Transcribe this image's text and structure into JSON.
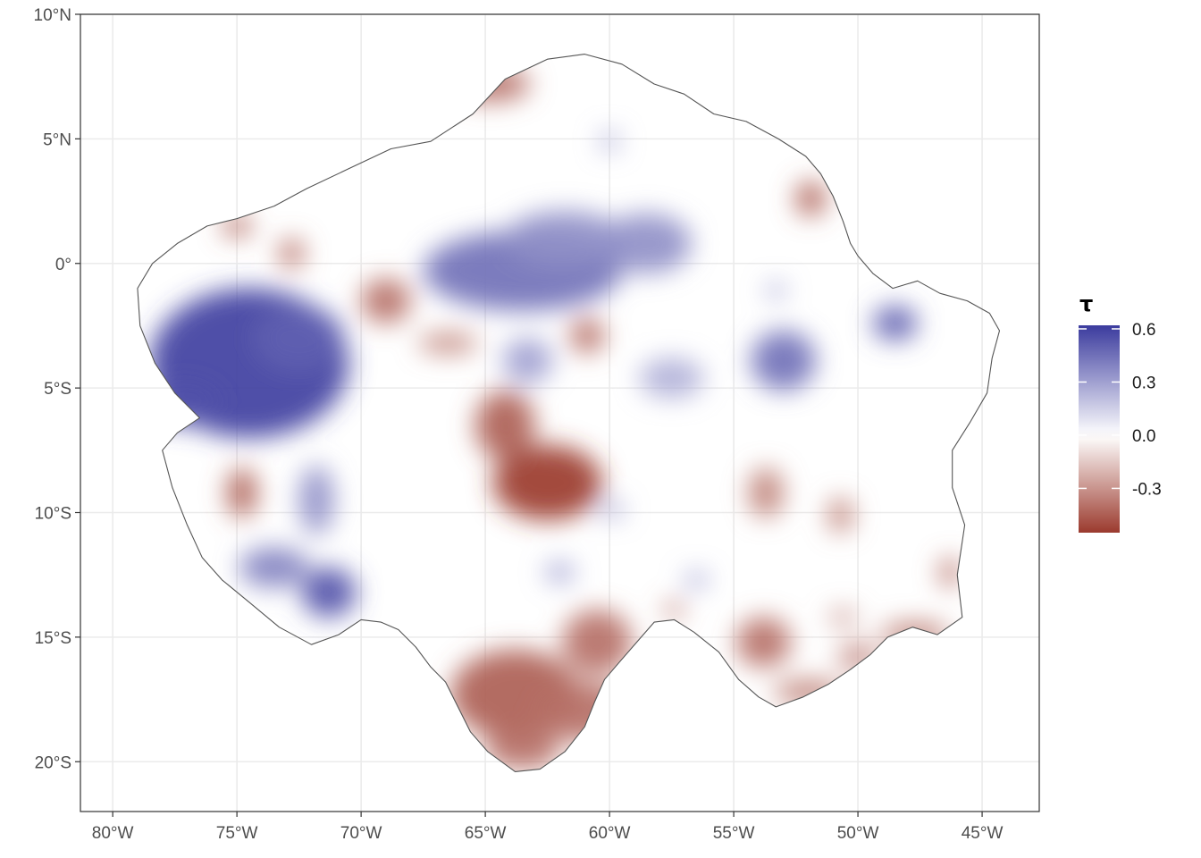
{
  "map": {
    "x_ticks": [
      {
        "lon": -80,
        "label": "80°W"
      },
      {
        "lon": -75,
        "label": "75°W"
      },
      {
        "lon": -70,
        "label": "70°W"
      },
      {
        "lon": -65,
        "label": "65°W"
      },
      {
        "lon": -60,
        "label": "60°W"
      },
      {
        "lon": -55,
        "label": "55°W"
      },
      {
        "lon": -50,
        "label": "50°W"
      },
      {
        "lon": -45,
        "label": "45°W"
      }
    ],
    "y_ticks": [
      {
        "lat": 10,
        "label": "10°N"
      },
      {
        "lat": 5,
        "label": "5°N"
      },
      {
        "lat": 0,
        "label": "0°"
      },
      {
        "lat": -5,
        "label": "5°S"
      },
      {
        "lat": -10,
        "label": "10°S"
      },
      {
        "lat": -15,
        "label": "15°S"
      },
      {
        "lat": -20,
        "label": "20°S"
      }
    ],
    "lon_range": [
      -81.3,
      -42.7
    ],
    "lat_range": [
      -22,
      10
    ],
    "grid": true,
    "boundary_color": "#555555",
    "outline": [
      [
        -76.5,
        -6.2
      ],
      [
        -77.5,
        -5.2
      ],
      [
        -78.3,
        -4.0
      ],
      [
        -78.9,
        -2.5
      ],
      [
        -79.0,
        -1.0
      ],
      [
        -78.4,
        0.0
      ],
      [
        -77.4,
        0.8
      ],
      [
        -76.2,
        1.5
      ],
      [
        -75.0,
        1.8
      ],
      [
        -73.5,
        2.3
      ],
      [
        -72.2,
        3.0
      ],
      [
        -70.5,
        3.8
      ],
      [
        -68.8,
        4.6
      ],
      [
        -67.2,
        4.9
      ],
      [
        -65.5,
        6.0
      ],
      [
        -64.2,
        7.4
      ],
      [
        -62.5,
        8.2
      ],
      [
        -61.0,
        8.4
      ],
      [
        -59.5,
        8.0
      ],
      [
        -58.2,
        7.2
      ],
      [
        -57.0,
        6.8
      ],
      [
        -55.8,
        6.0
      ],
      [
        -54.5,
        5.7
      ],
      [
        -53.2,
        5.0
      ],
      [
        -52.1,
        4.3
      ],
      [
        -51.5,
        3.6
      ],
      [
        -51.0,
        2.7
      ],
      [
        -50.6,
        1.7
      ],
      [
        -50.3,
        0.8
      ],
      [
        -50.0,
        0.3
      ],
      [
        -49.4,
        -0.4
      ],
      [
        -48.6,
        -1.0
      ],
      [
        -47.6,
        -0.7
      ],
      [
        -46.7,
        -1.2
      ],
      [
        -45.6,
        -1.5
      ],
      [
        -44.7,
        -2.0
      ],
      [
        -44.3,
        -2.7
      ],
      [
        -44.6,
        -3.8
      ],
      [
        -44.8,
        -5.2
      ],
      [
        -45.5,
        -6.4
      ],
      [
        -46.2,
        -7.5
      ],
      [
        -46.2,
        -9.0
      ],
      [
        -45.7,
        -10.5
      ],
      [
        -46.0,
        -12.5
      ],
      [
        -45.8,
        -14.2
      ],
      [
        -46.8,
        -14.9
      ],
      [
        -47.8,
        -14.6
      ],
      [
        -48.8,
        -15.0
      ],
      [
        -49.5,
        -15.7
      ],
      [
        -50.3,
        -16.3
      ],
      [
        -51.2,
        -16.9
      ],
      [
        -52.2,
        -17.4
      ],
      [
        -53.3,
        -17.8
      ],
      [
        -54.0,
        -17.4
      ],
      [
        -54.8,
        -16.7
      ],
      [
        -55.6,
        -15.6
      ],
      [
        -56.6,
        -14.8
      ],
      [
        -57.4,
        -14.3
      ],
      [
        -58.2,
        -14.4
      ],
      [
        -58.9,
        -15.2
      ],
      [
        -59.6,
        -16.0
      ],
      [
        -60.2,
        -16.7
      ],
      [
        -60.6,
        -17.6
      ],
      [
        -61.0,
        -18.6
      ],
      [
        -61.8,
        -19.6
      ],
      [
        -62.8,
        -20.3
      ],
      [
        -63.8,
        -20.4
      ],
      [
        -64.9,
        -19.6
      ],
      [
        -65.6,
        -18.8
      ],
      [
        -66.2,
        -17.6
      ],
      [
        -66.6,
        -16.8
      ],
      [
        -67.2,
        -16.2
      ],
      [
        -67.8,
        -15.4
      ],
      [
        -68.5,
        -14.7
      ],
      [
        -69.2,
        -14.4
      ],
      [
        -70.0,
        -14.3
      ],
      [
        -70.9,
        -14.9
      ],
      [
        -72.0,
        -15.3
      ],
      [
        -73.3,
        -14.6
      ],
      [
        -74.5,
        -13.6
      ],
      [
        -75.6,
        -12.7
      ],
      [
        -76.4,
        -11.8
      ],
      [
        -77.0,
        -10.5
      ],
      [
        -77.6,
        -9.0
      ],
      [
        -78.0,
        -7.5
      ],
      [
        -77.4,
        -6.8
      ]
    ]
  },
  "legend": {
    "title": "τ",
    "ticks": [
      {
        "value": 0.6,
        "label": "0.6"
      },
      {
        "value": 0.3,
        "label": "0.3"
      },
      {
        "value": 0.0,
        "label": "0.0"
      },
      {
        "value": -0.3,
        "label": "-0.3"
      }
    ],
    "range": [
      -0.55,
      0.62
    ],
    "colors": {
      "high": "#3b3b9e",
      "mid": "#ffffff",
      "low": "#9b3a2e"
    }
  },
  "chart_data": {
    "type": "heatmap",
    "value_name": "τ",
    "lon_range": [
      -81.3,
      -42.7
    ],
    "lat_range": [
      -22,
      10
    ],
    "scale": {
      "low": -0.55,
      "mid": 0.0,
      "high": 0.62
    },
    "blobs": [
      {
        "lon": -74.5,
        "lat": -4.0,
        "rlon": 4.0,
        "rlat": 3.0,
        "tau": 0.6
      },
      {
        "lon": -72.5,
        "lat": -3.0,
        "rlon": 1.8,
        "rlat": 1.3,
        "tau": 0.5
      },
      {
        "lon": -77.2,
        "lat": -5.6,
        "rlon": 1.6,
        "rlat": 0.9,
        "tau": 0.55
      },
      {
        "lon": -63.5,
        "lat": -0.3,
        "rlon": 4.0,
        "rlat": 1.6,
        "tau": 0.45
      },
      {
        "lon": -61.8,
        "lat": 1.0,
        "rlon": 2.4,
        "rlat": 1.1,
        "tau": 0.35
      },
      {
        "lon": -58.5,
        "lat": 0.8,
        "rlon": 1.8,
        "rlat": 1.2,
        "tau": 0.35
      },
      {
        "lon": -53.0,
        "lat": -3.9,
        "rlon": 1.3,
        "rlat": 1.2,
        "tau": 0.45
      },
      {
        "lon": -48.5,
        "lat": -2.4,
        "rlon": 0.9,
        "rlat": 0.7,
        "tau": 0.5
      },
      {
        "lon": -71.3,
        "lat": -13.2,
        "rlon": 1.1,
        "rlat": 1.0,
        "tau": 0.55
      },
      {
        "lon": -73.5,
        "lat": -12.2,
        "rlon": 1.4,
        "rlat": 0.8,
        "tau": 0.4
      },
      {
        "lon": -71.8,
        "lat": -9.5,
        "rlon": 0.7,
        "rlat": 1.4,
        "tau": 0.35
      },
      {
        "lon": -63.3,
        "lat": -3.9,
        "rlon": 1.0,
        "rlat": 0.9,
        "tau": 0.3
      },
      {
        "lon": -59.9,
        "lat": -9.9,
        "rlon": 0.5,
        "rlat": 0.3,
        "tau": 0.3
      },
      {
        "lon": -62.0,
        "lat": -12.4,
        "rlon": 0.6,
        "rlat": 0.4,
        "tau": 0.3
      },
      {
        "lon": -56.5,
        "lat": -12.7,
        "rlon": 0.5,
        "rlat": 0.3,
        "tau": 0.3
      },
      {
        "lon": -60.0,
        "lat": 4.9,
        "rlon": 0.4,
        "rlat": 0.4,
        "tau": 0.25
      },
      {
        "lon": -53.3,
        "lat": -1.1,
        "rlon": 0.4,
        "rlat": 0.3,
        "tau": 0.3
      },
      {
        "lon": -57.5,
        "lat": -4.6,
        "rlon": 1.3,
        "rlat": 0.8,
        "tau": 0.25
      },
      {
        "lon": -62.5,
        "lat": -8.8,
        "rlon": 2.2,
        "rlat": 1.5,
        "tau": -0.55
      },
      {
        "lon": -64.2,
        "lat": -6.5,
        "rlon": 1.2,
        "rlat": 1.4,
        "tau": -0.45
      },
      {
        "lon": -63.8,
        "lat": -17.3,
        "rlon": 2.6,
        "rlat": 1.8,
        "tau": -0.45
      },
      {
        "lon": -61.0,
        "lat": -18.0,
        "rlon": 2.0,
        "rlat": 1.2,
        "tau": -0.4
      },
      {
        "lon": -63.5,
        "lat": -19.5,
        "rlon": 1.5,
        "rlat": 0.8,
        "tau": -0.4
      },
      {
        "lon": -60.5,
        "lat": -15.2,
        "rlon": 1.4,
        "rlat": 1.3,
        "tau": -0.4
      },
      {
        "lon": -64.8,
        "lat": 7.2,
        "rlon": 1.6,
        "rlat": 0.7,
        "tau": -0.4
      },
      {
        "lon": -69.0,
        "lat": -1.5,
        "rlon": 1.0,
        "rlat": 0.9,
        "tau": -0.4
      },
      {
        "lon": -75.0,
        "lat": 1.5,
        "rlon": 0.6,
        "rlat": 0.4,
        "tau": -0.45
      },
      {
        "lon": -72.8,
        "lat": 0.4,
        "rlon": 0.5,
        "rlat": 0.6,
        "tau": -0.4
      },
      {
        "lon": -74.8,
        "lat": -9.2,
        "rlon": 0.6,
        "rlat": 1.0,
        "tau": -0.45
      },
      {
        "lon": -51.9,
        "lat": 2.6,
        "rlon": 0.6,
        "rlat": 0.7,
        "tau": -0.45
      },
      {
        "lon": -60.9,
        "lat": -2.9,
        "rlon": 0.7,
        "rlat": 0.7,
        "tau": -0.4
      },
      {
        "lon": -66.5,
        "lat": -3.2,
        "rlon": 1.2,
        "rlat": 0.4,
        "tau": -0.35
      },
      {
        "lon": -53.8,
        "lat": -15.2,
        "rlon": 1.1,
        "rlat": 1.0,
        "tau": -0.4
      },
      {
        "lon": -52.0,
        "lat": -17.2,
        "rlon": 1.4,
        "rlat": 0.5,
        "tau": -0.35
      },
      {
        "lon": -53.7,
        "lat": -9.2,
        "rlon": 0.7,
        "rlat": 1.0,
        "tau": -0.35
      },
      {
        "lon": -50.7,
        "lat": -10.1,
        "rlon": 0.5,
        "rlat": 0.7,
        "tau": -0.35
      },
      {
        "lon": -46.3,
        "lat": -12.4,
        "rlon": 0.4,
        "rlat": 0.6,
        "tau": -0.4
      },
      {
        "lon": -47.7,
        "lat": -14.9,
        "rlon": 1.4,
        "rlat": 0.5,
        "tau": -0.35
      },
      {
        "lon": -50.0,
        "lat": -15.8,
        "rlon": 0.8,
        "rlat": 0.6,
        "tau": -0.3
      },
      {
        "lon": -50.6,
        "lat": -14.2,
        "rlon": 0.6,
        "rlat": 0.3,
        "tau": -0.3
      },
      {
        "lon": -57.4,
        "lat": -13.9,
        "rlon": 0.4,
        "rlat": 0.3,
        "tau": -0.4
      }
    ]
  }
}
